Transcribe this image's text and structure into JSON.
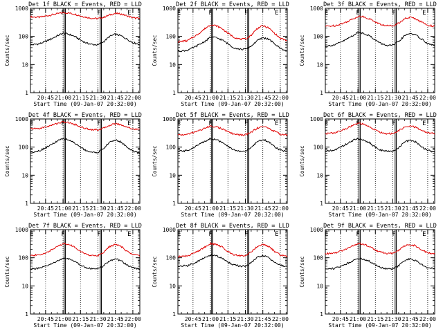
{
  "y_axis_label": "Counts/sec",
  "x_axis_label": "Start Time (09-Jan-07 20:32:00)",
  "y_tick_labels": [
    "1",
    "10",
    "100",
    "1000"
  ],
  "x_tick_labels": [
    "20:45",
    "21:00",
    "21:15",
    "21:30",
    "21:45",
    "22:00"
  ],
  "marker_labels": [
    "E",
    "F",
    "F",
    "E"
  ],
  "colors": {
    "events": "#000000",
    "lld": "#e00000",
    "frame": "#000000",
    "background": "#ffffff"
  },
  "chart_data": [
    {
      "type": "line",
      "title": "Det 1f BLACK = Events, RED = LLD",
      "x": [
        "20:32",
        "20:40",
        "20:48",
        "20:56",
        "21:00",
        "21:05",
        "21:10",
        "21:15",
        "21:20",
        "21:25",
        "21:30",
        "21:35",
        "21:40",
        "21:45",
        "21:50",
        "21:55",
        "22:00",
        "22:06"
      ],
      "series": [
        {
          "color": "red",
          "values": [
            500,
            480,
            560,
            650,
            700,
            680,
            620,
            540,
            480,
            440,
            430,
            480,
            580,
            660,
            620,
            540,
            460,
            430
          ]
        },
        {
          "color": "black",
          "values": [
            50,
            55,
            75,
            110,
            130,
            120,
            100,
            75,
            58,
            52,
            50,
            65,
            100,
            120,
            105,
            80,
            60,
            52
          ]
        }
      ],
      "ylim": [
        1,
        1000
      ],
      "yscale": "log",
      "markers": [
        "21:01",
        "21:02",
        "21:32",
        "21:33"
      ]
    },
    {
      "type": "line",
      "title": "Det 2f BLACK = Events, RED = LLD",
      "x": [
        "20:32",
        "20:40",
        "20:48",
        "20:56",
        "21:00",
        "21:05",
        "21:10",
        "21:15",
        "21:20",
        "21:25",
        "21:30",
        "21:35",
        "21:40",
        "21:45",
        "21:50",
        "21:55",
        "22:00",
        "22:06"
      ],
      "series": [
        {
          "color": "red",
          "values": [
            65,
            70,
            110,
            200,
            260,
            240,
            190,
            130,
            95,
            80,
            80,
            110,
            190,
            240,
            200,
            130,
            85,
            70
          ]
        },
        {
          "color": "black",
          "values": [
            30,
            32,
            45,
            70,
            95,
            90,
            75,
            55,
            40,
            35,
            35,
            45,
            70,
            90,
            80,
            55,
            38,
            30
          ]
        }
      ],
      "ylim": [
        1,
        1000
      ],
      "yscale": "log",
      "markers": [
        "21:01",
        "21:02",
        "21:32",
        "21:33"
      ]
    },
    {
      "type": "line",
      "title": "Det 3f BLACK = Events, RED = LLD",
      "x": [
        "20:32",
        "20:40",
        "20:48",
        "20:56",
        "21:00",
        "21:05",
        "21:10",
        "21:15",
        "21:20",
        "21:25",
        "21:30",
        "21:35",
        "21:40",
        "21:45",
        "21:50",
        "21:55",
        "22:00",
        "22:06"
      ],
      "series": [
        {
          "color": "red",
          "values": [
            230,
            240,
            300,
            420,
            520,
            500,
            420,
            330,
            260,
            240,
            240,
            300,
            420,
            480,
            420,
            320,
            250,
            230
          ]
        },
        {
          "color": "black",
          "values": [
            45,
            50,
            70,
            110,
            140,
            130,
            105,
            75,
            55,
            48,
            48,
            65,
            105,
            130,
            110,
            80,
            55,
            48
          ]
        }
      ],
      "ylim": [
        1,
        1000
      ],
      "yscale": "log",
      "markers": [
        "21:01",
        "21:02",
        "21:32",
        "21:33"
      ]
    },
    {
      "type": "line",
      "title": "Det 4f BLACK = Events, RED = LLD",
      "x": [
        "20:32",
        "20:40",
        "20:48",
        "20:56",
        "21:00",
        "21:05",
        "21:10",
        "21:15",
        "21:20",
        "21:25",
        "21:30",
        "21:35",
        "21:40",
        "21:45",
        "21:50",
        "21:55",
        "22:00",
        "22:06"
      ],
      "series": [
        {
          "color": "red",
          "values": [
            450,
            460,
            560,
            720,
            780,
            740,
            640,
            530,
            450,
            420,
            410,
            470,
            600,
            680,
            620,
            520,
            440,
            420
          ]
        },
        {
          "color": "black",
          "values": [
            65,
            75,
            110,
            170,
            200,
            180,
            140,
            100,
            75,
            65,
            65,
            90,
            150,
            180,
            150,
            100,
            72,
            60
          ]
        }
      ],
      "ylim": [
        1,
        1000
      ],
      "yscale": "log",
      "markers": [
        "21:01",
        "21:02",
        "21:32",
        "21:33"
      ]
    },
    {
      "type": "line",
      "title": "Det 5f BLACK = Events, RED = LLD",
      "x": [
        "20:32",
        "20:40",
        "20:48",
        "20:56",
        "21:00",
        "21:05",
        "21:10",
        "21:15",
        "21:20",
        "21:25",
        "21:30",
        "21:35",
        "21:40",
        "21:45",
        "21:50",
        "21:55",
        "22:00",
        "22:06"
      ],
      "series": [
        {
          "color": "red",
          "values": [
            270,
            280,
            360,
            480,
            560,
            530,
            440,
            350,
            290,
            270,
            270,
            340,
            470,
            540,
            470,
            360,
            290,
            270
          ]
        },
        {
          "color": "black",
          "values": [
            70,
            75,
            110,
            170,
            200,
            185,
            145,
            105,
            80,
            72,
            72,
            95,
            155,
            185,
            155,
            105,
            78,
            70
          ]
        }
      ],
      "ylim": [
        1,
        1000
      ],
      "yscale": "log",
      "markers": [
        "21:01",
        "21:02",
        "21:32",
        "21:33"
      ]
    },
    {
      "type": "line",
      "title": "Det 6f BLACK = Events, RED = LLD",
      "x": [
        "20:32",
        "20:40",
        "20:48",
        "20:56",
        "21:00",
        "21:05",
        "21:10",
        "21:15",
        "21:20",
        "21:25",
        "21:30",
        "21:35",
        "21:40",
        "21:45",
        "21:50",
        "21:55",
        "22:00",
        "22:06"
      ],
      "series": [
        {
          "color": "red",
          "values": [
            300,
            320,
            420,
            600,
            700,
            640,
            520,
            400,
            330,
            300,
            300,
            380,
            500,
            560,
            500,
            390,
            320,
            300
          ]
        },
        {
          "color": "black",
          "values": [
            70,
            78,
            115,
            175,
            200,
            180,
            140,
            100,
            78,
            70,
            70,
            95,
            150,
            175,
            150,
            100,
            76,
            68
          ]
        }
      ],
      "ylim": [
        1,
        1000
      ],
      "yscale": "log",
      "markers": [
        "21:01",
        "21:02",
        "21:32",
        "21:33"
      ]
    },
    {
      "type": "line",
      "title": "Det 7f BLACK = Events, RED = LLD",
      "x": [
        "20:32",
        "20:40",
        "20:48",
        "20:56",
        "21:00",
        "21:05",
        "21:10",
        "21:15",
        "21:20",
        "21:25",
        "21:30",
        "21:35",
        "21:40",
        "21:45",
        "21:50",
        "21:55",
        "22:00",
        "22:06"
      ],
      "series": [
        {
          "color": "red",
          "values": [
            120,
            125,
            170,
            260,
            320,
            300,
            240,
            170,
            130,
            120,
            120,
            160,
            250,
            300,
            250,
            170,
            130,
            120
          ]
        },
        {
          "color": "black",
          "values": [
            40,
            42,
            55,
            80,
            95,
            90,
            75,
            55,
            45,
            40,
            40,
            52,
            78,
            92,
            78,
            55,
            44,
            40
          ]
        }
      ],
      "ylim": [
        1,
        1000
      ],
      "yscale": "log",
      "markers": [
        "21:01",
        "21:02",
        "21:32",
        "21:33"
      ]
    },
    {
      "type": "line",
      "title": "Det 8f BLACK = Events, RED = LLD",
      "x": [
        "20:32",
        "20:40",
        "20:48",
        "20:56",
        "21:00",
        "21:05",
        "21:10",
        "21:15",
        "21:20",
        "21:25",
        "21:30",
        "21:35",
        "21:40",
        "21:45",
        "21:50",
        "21:55",
        "22:00",
        "22:06"
      ],
      "series": [
        {
          "color": "red",
          "values": [
            110,
            115,
            160,
            250,
            320,
            300,
            240,
            170,
            130,
            120,
            120,
            160,
            250,
            300,
            250,
            170,
            125,
            110
          ]
        },
        {
          "color": "black",
          "values": [
            50,
            52,
            70,
            105,
            125,
            118,
            95,
            70,
            56,
            50,
            50,
            66,
            100,
            120,
            100,
            70,
            54,
            48
          ]
        }
      ],
      "ylim": [
        1,
        1000
      ],
      "yscale": "log",
      "markers": [
        "21:01",
        "21:02",
        "21:32",
        "21:33"
      ]
    },
    {
      "type": "line",
      "title": "Det 9f BLACK = Events, RED = LLD",
      "x": [
        "20:32",
        "20:40",
        "20:48",
        "20:56",
        "21:00",
        "21:05",
        "21:10",
        "21:15",
        "21:20",
        "21:25",
        "21:30",
        "21:35",
        "21:40",
        "21:45",
        "21:50",
        "21:55",
        "22:00",
        "22:06"
      ],
      "series": [
        {
          "color": "red",
          "values": [
            140,
            145,
            190,
            270,
            320,
            300,
            250,
            190,
            155,
            145,
            145,
            185,
            260,
            300,
            260,
            190,
            150,
            140
          ]
        },
        {
          "color": "black",
          "values": [
            40,
            42,
            55,
            80,
            95,
            90,
            75,
            56,
            45,
            40,
            40,
            52,
            78,
            92,
            78,
            56,
            44,
            40
          ]
        }
      ],
      "ylim": [
        1,
        1000
      ],
      "yscale": "log",
      "markers": [
        "21:01",
        "21:02",
        "21:32",
        "21:33"
      ]
    }
  ]
}
